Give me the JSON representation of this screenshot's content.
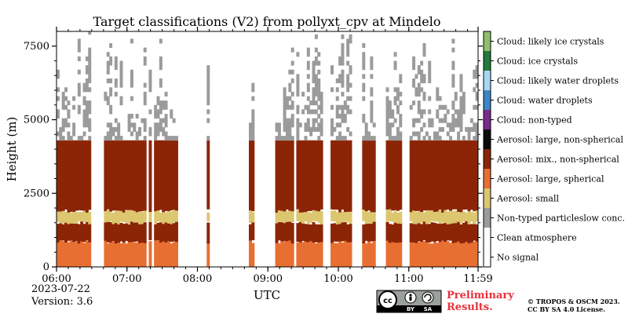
{
  "chart_data": {
    "type": "heatmap",
    "title": "Target classifications (V2) from pollyxt_cpv at Mindelo",
    "xlabel": "UTC",
    "ylabel": "Height (m)",
    "x_ticks": [
      "06:00",
      "07:00",
      "08:00",
      "09:00",
      "10:00",
      "11:00",
      "11:59"
    ],
    "y_ticks": [
      "0",
      "2500",
      "5000",
      "7500"
    ],
    "x_range_hours": [
      6.0,
      11.983
    ],
    "y_range_m": [
      0,
      8000
    ],
    "grid": false,
    "legend_placement": "right colorbar",
    "classes": [
      {
        "label": "No signal",
        "color": "#ffffff"
      },
      {
        "label": "Clean atmosphere",
        "color": "#ffffff"
      },
      {
        "label": "Non-typed particleslow conc.",
        "color": "#9b9b9b"
      },
      {
        "label": "Aerosol: small",
        "color": "#dcc66f"
      },
      {
        "label": "Aerosol: large, spherical",
        "color": "#e86f32"
      },
      {
        "label": "Aerosol: mix., non-spherical",
        "color": "#8b2506"
      },
      {
        "label": "Aerosol: large, non-spherical",
        "color": "#0a0a0a"
      },
      {
        "label": "Cloud: non-typed",
        "color": "#7a2a8c"
      },
      {
        "label": "Cloud: water droplets",
        "color": "#3b86c6"
      },
      {
        "label": "Cloud: likely water droplets",
        "color": "#a9d6f2"
      },
      {
        "label": "Cloud: ice crystals",
        "color": "#207a3a"
      },
      {
        "label": "Cloud: likely ice crystals",
        "color": "#8fbf6c"
      }
    ],
    "layers_approx": [
      {
        "class": "Aerosol: large, spherical",
        "from_m": 0,
        "to_m": 850
      },
      {
        "class": "Aerosol: mix., non-spherical",
        "from_m": 850,
        "to_m": 1500
      },
      {
        "class": "Aerosol: small",
        "from_m": 1500,
        "to_m": 1900
      },
      {
        "class": "Aerosol: mix., non-spherical",
        "from_m": 1900,
        "to_m": 4300
      },
      {
        "class": "Non-typed particleslow conc.",
        "from_m": 4300,
        "to_m": 8000
      }
    ],
    "no_signal_gaps_utc": [
      [
        "06:30",
        "06:40"
      ],
      [
        "07:16",
        "07:18"
      ],
      [
        "07:20",
        "07:22"
      ],
      [
        "07:43",
        "08:07"
      ],
      [
        "08:11",
        "08:18"
      ],
      [
        "08:20",
        "08:44"
      ],
      [
        "08:49",
        "09:07"
      ],
      [
        "09:22",
        "09:25"
      ],
      [
        "09:47",
        "09:53"
      ],
      [
        "10:11",
        "10:21"
      ],
      [
        "10:32",
        "10:41"
      ],
      [
        "10:54",
        "11:00"
      ]
    ]
  },
  "footer": {
    "date": "2023-07-22",
    "version": "Version: 3.6",
    "preliminary_line1": "Preliminary",
    "preliminary_line2": "Results.",
    "copyright_line1": "© TROPOS & OSCM 2023.",
    "copyright_line2": "CC BY SA 4.0 License.",
    "license_badge": {
      "cc": "cc",
      "by": "BY",
      "sa": "SA"
    }
  }
}
